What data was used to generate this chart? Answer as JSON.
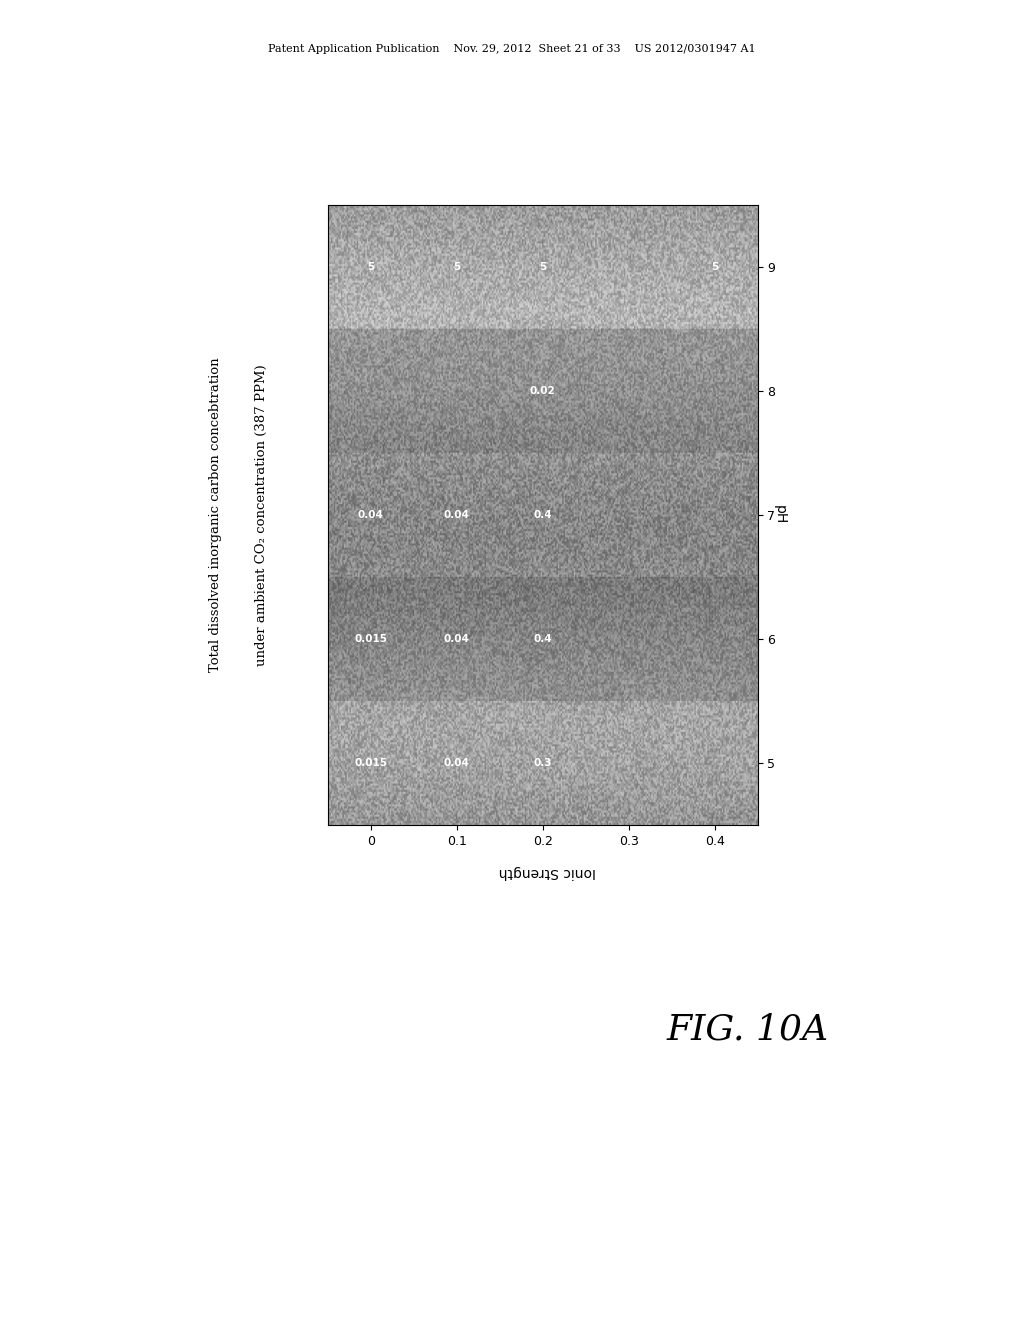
{
  "title_line1": "Total dissolved inorganic carbon concebtration",
  "title_line2": "under ambient CO₂ concentration (387 PPM)",
  "xlabel_rotated": "Ionic Strength",
  "ylabel_rotated": "pH",
  "x_ticks": [
    0.0,
    0.1,
    0.2,
    0.3,
    0.4
  ],
  "x_tick_labels": [
    "0",
    "0.1",
    "0.2",
    "0.3",
    "0.4"
  ],
  "y_ticks": [
    5,
    6,
    7,
    8,
    9
  ],
  "xlim": [
    -0.05,
    0.45
  ],
  "ylim": [
    4.5,
    9.5
  ],
  "fig_caption": "FIG. 10A",
  "header_text": "Patent Application Publication    Nov. 29, 2012  Sheet 21 of 33    US 2012/0301947 A1",
  "annotations": [
    {
      "is": 0.0,
      "ph": 5,
      "val": "0.015"
    },
    {
      "is": 0.1,
      "ph": 5,
      "val": "0.04"
    },
    {
      "is": 0.2,
      "ph": 5,
      "val": "0.3"
    },
    {
      "is": 0.0,
      "ph": 6,
      "val": "0.015"
    },
    {
      "is": 0.1,
      "ph": 6,
      "val": "0.04"
    },
    {
      "is": 0.2,
      "ph": 6,
      "val": "0.4"
    },
    {
      "is": 0.0,
      "ph": 7,
      "val": "0.04"
    },
    {
      "is": 0.1,
      "ph": 7,
      "val": "0.04"
    },
    {
      "is": 0.2,
      "ph": 7,
      "val": "0.4"
    },
    {
      "is": 0.2,
      "ph": 8,
      "val": "0.02"
    },
    {
      "is": 0.0,
      "ph": 9,
      "val": "5"
    },
    {
      "is": 0.1,
      "ph": 9,
      "val": "5"
    },
    {
      "is": 0.2,
      "ph": 9,
      "val": "5"
    },
    {
      "is": 0.4,
      "ph": 9,
      "val": "5"
    }
  ],
  "annotation_color": "white",
  "annotation_fontsize": 7.5,
  "strip_colors": [
    "#c0c0c0",
    "#a8a8a8",
    "#b8b8b8",
    "#989898",
    "#c8c8c8"
  ],
  "strip_y_boundaries": [
    4.5,
    5.5,
    6.5,
    7.5,
    8.5,
    9.5
  ]
}
